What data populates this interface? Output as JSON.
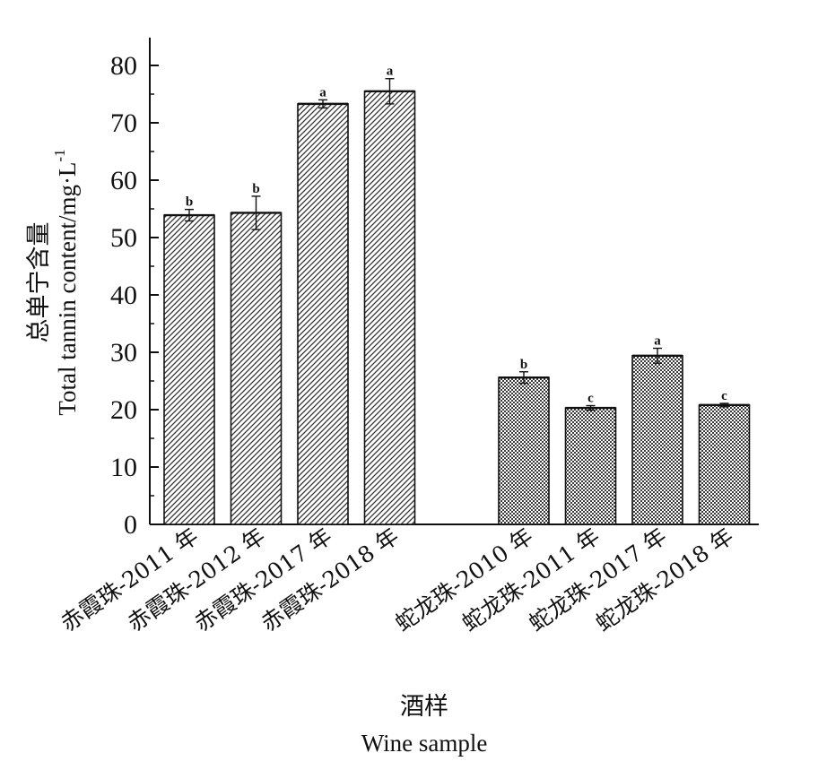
{
  "chart_data": {
    "type": "bar",
    "ylabel_cn": "总单宁含量",
    "ylabel_en": "Total tannin content/mg·L",
    "ylabel_sup": "-1",
    "xlabel_cn": "酒样",
    "xlabel_en": "Wine sample",
    "ylim": [
      0,
      85
    ],
    "yticks": [
      0,
      10,
      20,
      30,
      40,
      50,
      60,
      70,
      80
    ],
    "groups": [
      {
        "pattern": "hatch",
        "categories": [
          "赤霞珠-2011 年",
          "赤霞珠-2012 年",
          "赤霞珠-2017 年",
          "赤霞珠-2018 年"
        ],
        "values": [
          53.9,
          54.3,
          73.3,
          75.5
        ],
        "errors": [
          1.0,
          2.9,
          0.7,
          2.2
        ],
        "significance": [
          "b",
          "b",
          "a",
          "a"
        ]
      },
      {
        "pattern": "crosshatch",
        "categories": [
          "蛇龙珠-2010 年",
          "蛇龙珠-2011 年",
          "蛇龙珠-2017 年",
          "蛇龙珠-2018 年"
        ],
        "values": [
          25.6,
          20.3,
          29.4,
          20.8
        ],
        "errors": [
          1.0,
          0.4,
          1.3,
          0.3
        ],
        "significance": [
          "b",
          "c",
          "a",
          "c"
        ]
      }
    ]
  }
}
